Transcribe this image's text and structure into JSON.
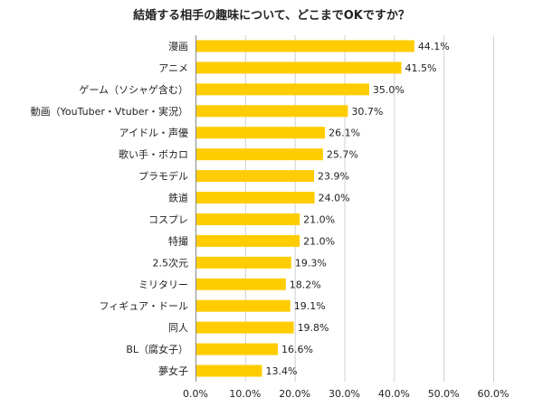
{
  "chart_data": {
    "type": "bar",
    "orientation": "horizontal",
    "title": "結婚する相手の趣味について、どこまでOKですか？",
    "categories": [
      "漫画",
      "アニメ",
      "ゲーム（ソシャゲ含む）",
      "動画（YouTuber・Vtuber・実況）",
      "アイドル・声優",
      "歌い手・ボカロ",
      "プラモデル",
      "鉄道",
      "コスプレ",
      "特撮",
      "2.5次元",
      "ミリタリー",
      "フィギュア・ドール",
      "同人",
      "BL（腐女子）",
      "夢女子"
    ],
    "values": [
      44.1,
      41.5,
      35.0,
      30.7,
      26.1,
      25.7,
      23.9,
      24.0,
      21.0,
      21.0,
      19.3,
      18.2,
      19.1,
      19.8,
      16.6,
      13.4
    ],
    "value_labels": [
      "44.1%",
      "41.5%",
      "35.0%",
      "30.7%",
      "26.1%",
      "25.7%",
      "23.9%",
      "24.0%",
      "21.0%",
      "21.0%",
      "19.3%",
      "18.2%",
      "19.1%",
      "19.8%",
      "16.6%",
      "13.4%"
    ],
    "xlim": [
      0,
      60
    ],
    "xticks": [
      "0.0%",
      "10.0%",
      "20.0%",
      "30.0%",
      "40.0%",
      "50.0%",
      "60.0%"
    ],
    "grid": true,
    "bar_color": "#FFCC00"
  }
}
